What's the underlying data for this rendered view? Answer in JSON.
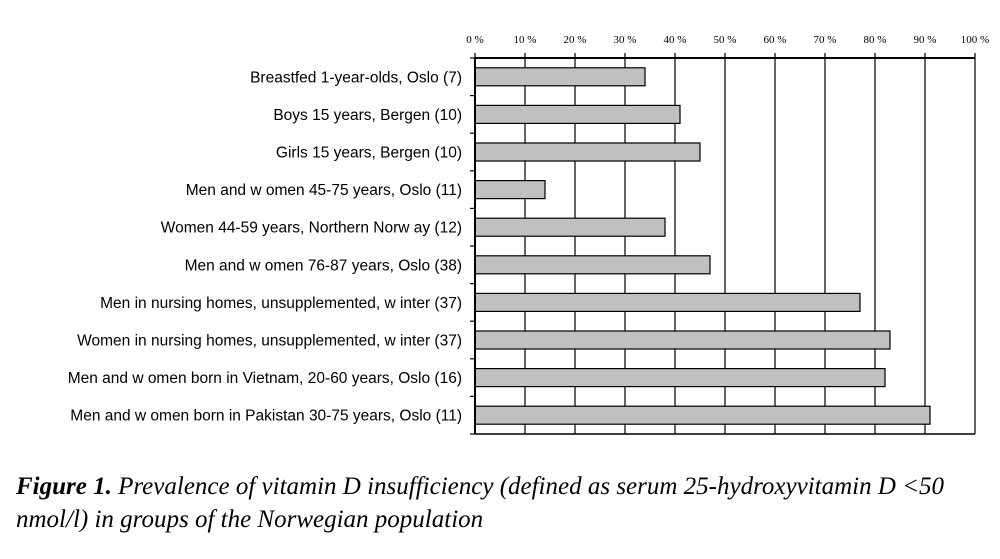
{
  "chart_data": {
    "type": "bar",
    "orientation": "horizontal",
    "categories": [
      "Breastfed 1-year-olds, Oslo (7)",
      "Boys 15 years, Bergen (10)",
      "Girls 15 years, Bergen (10)",
      "Men and w omen 45-75 years, Oslo (11)",
      "Women 44-59 years, Northern Norw ay (12)",
      "Men and w omen 76-87 years, Oslo (38)",
      "Men in nursing homes, unsupplemented, w inter (37)",
      "Women in nursing homes, unsupplemented, w inter (37)",
      "Men and w omen born in Vietnam, 20-60 years, Oslo (16)",
      "Men and w omen born in Pakistan 30-75 years, Oslo (11)"
    ],
    "values": [
      34,
      41,
      45,
      14,
      38,
      47,
      77,
      83,
      82,
      91
    ],
    "xlim": [
      0,
      100
    ],
    "x_ticks": [
      "0 %",
      "10 %",
      "20 %",
      "30 %",
      "40 %",
      "50 %",
      "60 %",
      "70 %",
      "80 %",
      "90 %",
      "100 %"
    ],
    "x_axis_position": "top",
    "grid": true,
    "bar_color": "#c0c0c0"
  },
  "caption": {
    "figure_number": "Figure 1.",
    "text": " Prevalence of vitamin D insufficiency (defined as serum 25-hydroxyvitamin D <50 nmol/l) in groups of the Norwegian population"
  }
}
